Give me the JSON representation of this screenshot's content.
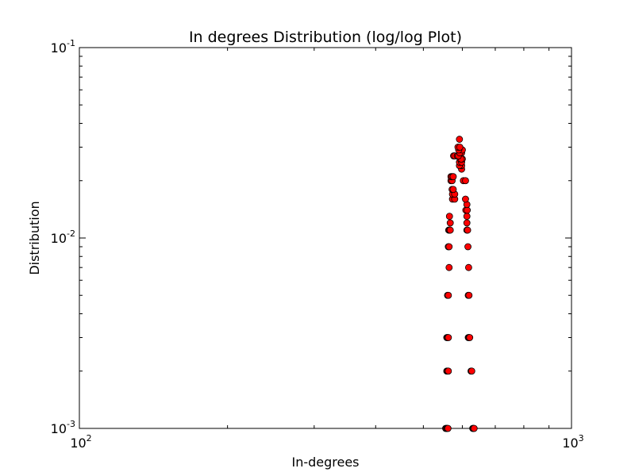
{
  "chart_data": {
    "type": "scatter",
    "title": "In degrees Distribution (log/log Plot)",
    "xlabel": "In-degrees",
    "ylabel": "Distribution",
    "x_scale": "log",
    "y_scale": "log",
    "xlim": [
      100,
      1000
    ],
    "ylim": [
      0.001,
      0.1
    ],
    "grid": false,
    "x_ticks": [
      {
        "base": "10",
        "exp": "2",
        "value": 100
      },
      {
        "base": "10",
        "exp": "3",
        "value": 1000
      }
    ],
    "y_ticks": [
      {
        "base": "10",
        "exp": "-3",
        "value": 0.001
      },
      {
        "base": "10",
        "exp": "-2",
        "value": 0.01
      },
      {
        "base": "10",
        "exp": "-1",
        "value": 0.1
      }
    ],
    "marker_face_color": "#ff0000",
    "marker_edge_color": "#000000",
    "points": [
      [
        555,
        0.001
      ],
      [
        557,
        0.001
      ],
      [
        559,
        0.001
      ],
      [
        561,
        0.001
      ],
      [
        630,
        0.001
      ],
      [
        632,
        0.001
      ],
      [
        634,
        0.001
      ],
      [
        558,
        0.002
      ],
      [
        560,
        0.002
      ],
      [
        562,
        0.002
      ],
      [
        625,
        0.002
      ],
      [
        627,
        0.002
      ],
      [
        558,
        0.003
      ],
      [
        560,
        0.003
      ],
      [
        562,
        0.003
      ],
      [
        617,
        0.003
      ],
      [
        619,
        0.003
      ],
      [
        621,
        0.003
      ],
      [
        560,
        0.005
      ],
      [
        562,
        0.005
      ],
      [
        617,
        0.005
      ],
      [
        619,
        0.005
      ],
      [
        564,
        0.007
      ],
      [
        618,
        0.007
      ],
      [
        562,
        0.009
      ],
      [
        564,
        0.009
      ],
      [
        616,
        0.009
      ],
      [
        563,
        0.011
      ],
      [
        565,
        0.011
      ],
      [
        567,
        0.011
      ],
      [
        613,
        0.011
      ],
      [
        615,
        0.011
      ],
      [
        567,
        0.012
      ],
      [
        613,
        0.012
      ],
      [
        565,
        0.013
      ],
      [
        613,
        0.013
      ],
      [
        610,
        0.014
      ],
      [
        614,
        0.014
      ],
      [
        613,
        0.015
      ],
      [
        609,
        0.016
      ],
      [
        573,
        0.016
      ],
      [
        579,
        0.016
      ],
      [
        573,
        0.017
      ],
      [
        579,
        0.017
      ],
      [
        572,
        0.018
      ],
      [
        575,
        0.018
      ],
      [
        569,
        0.02
      ],
      [
        572,
        0.02
      ],
      [
        603,
        0.02
      ],
      [
        609,
        0.02
      ],
      [
        569,
        0.021
      ],
      [
        572,
        0.021
      ],
      [
        575,
        0.021
      ],
      [
        598,
        0.023
      ],
      [
        598,
        0.024
      ],
      [
        592,
        0.024
      ],
      [
        592,
        0.025
      ],
      [
        598,
        0.025
      ],
      [
        600,
        0.026
      ],
      [
        594,
        0.026
      ],
      [
        597,
        0.026
      ],
      [
        576,
        0.027
      ],
      [
        579,
        0.027
      ],
      [
        586,
        0.027
      ],
      [
        589,
        0.027
      ],
      [
        598,
        0.028
      ],
      [
        593,
        0.028
      ],
      [
        600,
        0.029
      ],
      [
        590,
        0.029
      ],
      [
        588,
        0.03
      ],
      [
        593,
        0.03
      ],
      [
        592,
        0.033
      ]
    ]
  }
}
